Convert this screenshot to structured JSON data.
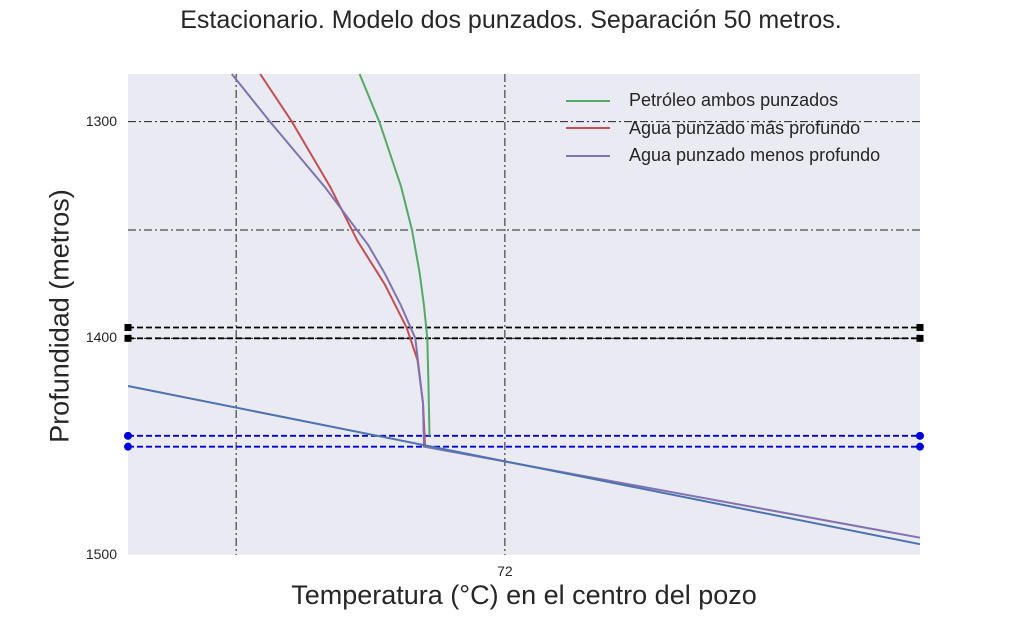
{
  "chart_data": {
    "type": "line",
    "title": "Estacionario. Modelo dos punzados. Separación 50 metros.",
    "xlabel": "Temperatura (°C) en el centro del pozo",
    "ylabel": "Profundidad (metros)",
    "xlim": [
      68.55,
      75.8
    ],
    "ylim": [
      1500,
      1278
    ],
    "y_axis_inverted": true,
    "x_ticks": [
      72
    ],
    "y_ticks": [
      1300,
      1400,
      1500
    ],
    "grid": "dash-dot",
    "extra_gridlines": {
      "x": [
        69.54
      ],
      "y": [
        1350
      ]
    },
    "legend_position": "top-right",
    "reference_lines": [
      {
        "style": "black-dashed",
        "marker": "square",
        "y": 1395
      },
      {
        "style": "black-dashed",
        "marker": "square",
        "y": 1400
      },
      {
        "style": "blue-dashed",
        "marker": "circle",
        "y": 1445
      },
      {
        "style": "blue-dashed",
        "marker": "circle",
        "y": 1450
      }
    ],
    "series": [
      {
        "name": "Petróleo ambos punzados",
        "color": "#55a868",
        "points": [
          [
            70.67,
            1278
          ],
          [
            70.85,
            1300
          ],
          [
            71.05,
            1330
          ],
          [
            71.15,
            1350
          ],
          [
            71.22,
            1370
          ],
          [
            71.26,
            1385
          ],
          [
            71.29,
            1400
          ],
          [
            71.3,
            1420
          ],
          [
            71.31,
            1445
          ]
        ]
      },
      {
        "name": "Agua punzado más profundo",
        "color": "#c44e52",
        "points": [
          [
            69.76,
            1278
          ],
          [
            70.05,
            1300
          ],
          [
            70.4,
            1330
          ],
          [
            70.65,
            1355
          ],
          [
            70.9,
            1375
          ],
          [
            71.1,
            1395
          ],
          [
            71.2,
            1410
          ],
          [
            71.25,
            1430
          ],
          [
            71.27,
            1450
          ]
        ]
      },
      {
        "name": "Agua punzado menos profundo",
        "color": "#8172b2",
        "points": [
          [
            69.5,
            1278
          ],
          [
            69.85,
            1300
          ],
          [
            70.35,
            1330
          ],
          [
            70.75,
            1357
          ],
          [
            70.9,
            1370
          ],
          [
            71.05,
            1385
          ],
          [
            71.18,
            1400
          ],
          [
            71.25,
            1430
          ],
          [
            71.26,
            1450
          ],
          [
            75.8,
            1492
          ]
        ]
      },
      {
        "name": "",
        "color": "#4c72b0",
        "points": [
          [
            68.55,
            1422
          ],
          [
            75.8,
            1495
          ]
        ]
      }
    ]
  }
}
